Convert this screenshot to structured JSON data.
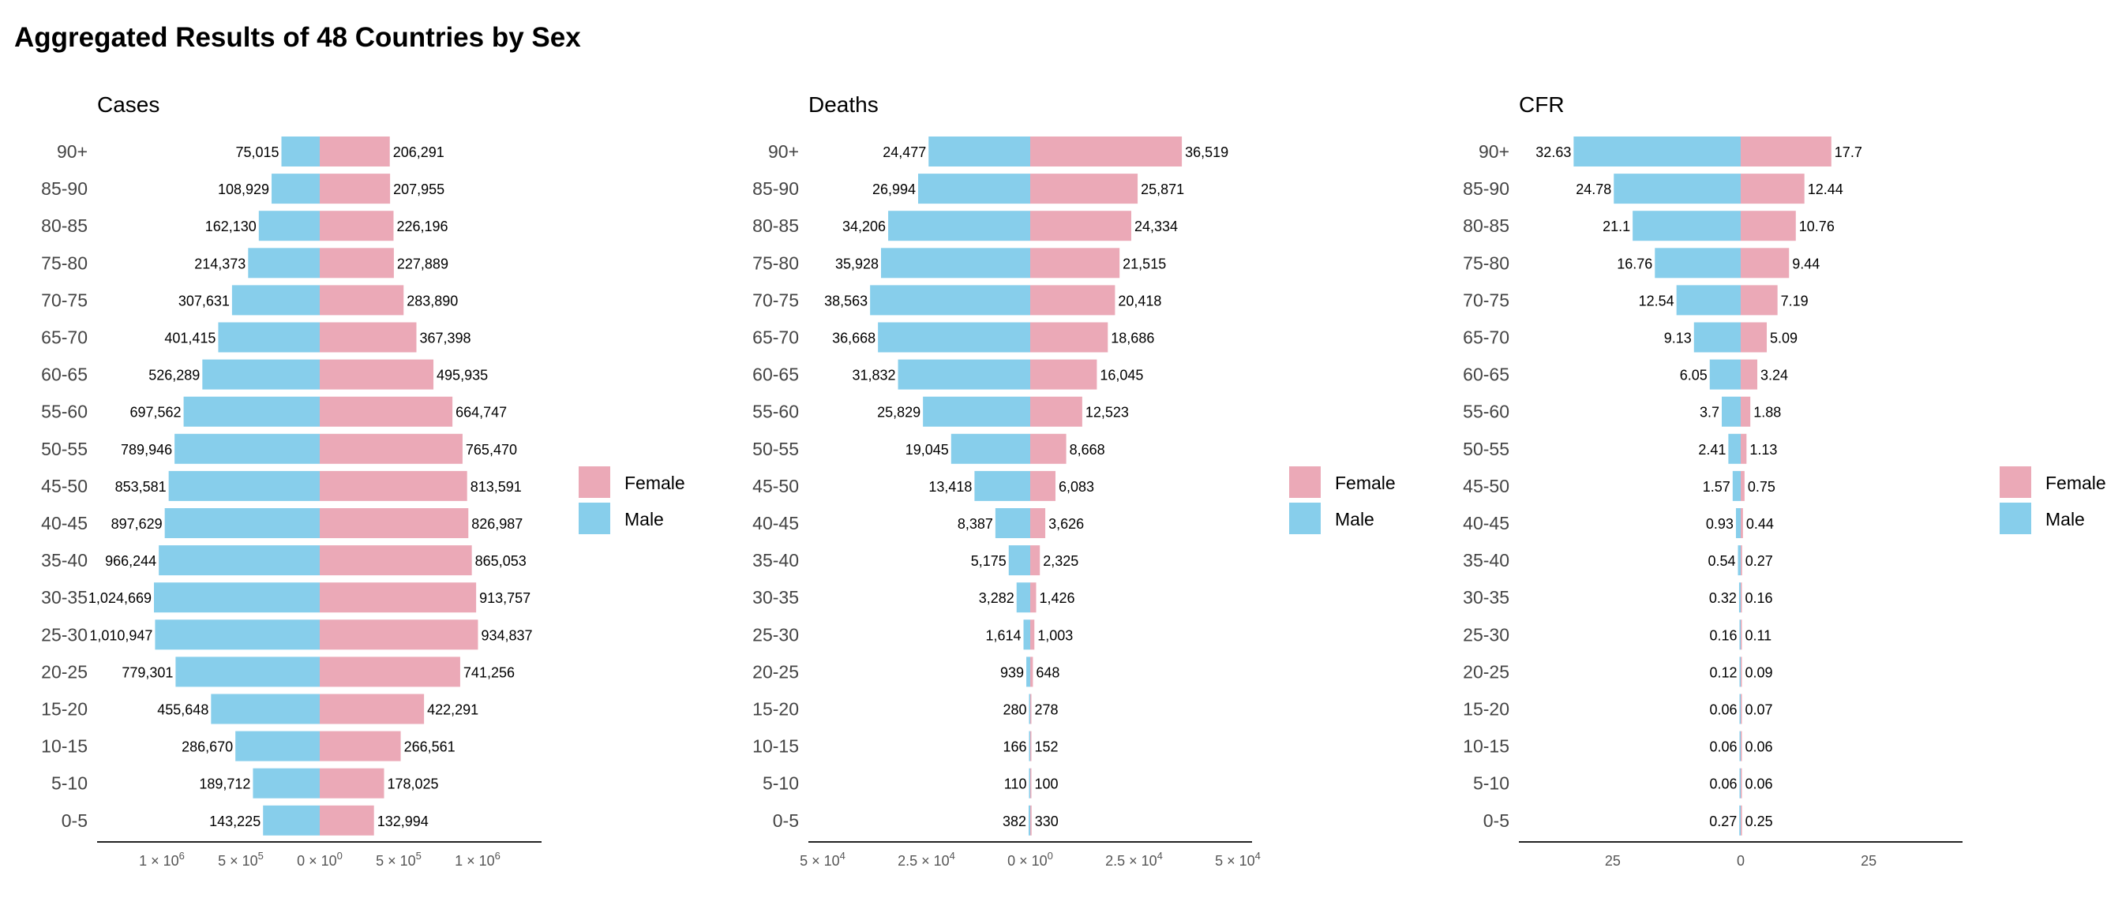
{
  "title": "Aggregated Results of 48 Countries by Sex",
  "colors": {
    "female": "#EBA9B7",
    "male": "#87CEEB"
  },
  "chart_data": [
    {
      "type": "bar",
      "orientation": "horizontal-diverging",
      "title": "Cases",
      "xscale": "pseudo-log (signed)",
      "categories": [
        "90+",
        "85-90",
        "80-85",
        "75-80",
        "70-75",
        "65-70",
        "60-65",
        "55-60",
        "50-55",
        "45-50",
        "40-45",
        "35-40",
        "30-35",
        "25-30",
        "20-25",
        "15-20",
        "10-15",
        "5-10",
        "0-5"
      ],
      "series": [
        {
          "name": "Female",
          "values": [
            206291,
            207955,
            226196,
            227889,
            283890,
            367398,
            495935,
            664747,
            765470,
            813591,
            826987,
            865053,
            913757,
            934837,
            741256,
            422291,
            266561,
            178025,
            132994
          ],
          "labels": [
            "206,291",
            "207,955",
            "226,196",
            "227,889",
            "283,890",
            "367,398",
            "495,935",
            "664,747",
            "765,470",
            "813,591",
            "826,987",
            "865,053",
            "913,757",
            "934,837",
            "741,256",
            "422,291",
            "266,561",
            "178,025",
            "132,994"
          ]
        },
        {
          "name": "Male",
          "values": [
            75015,
            108929,
            162130,
            214373,
            307631,
            401415,
            526289,
            697562,
            789946,
            853581,
            897629,
            966244,
            1024669,
            1010947,
            779301,
            455648,
            286670,
            189712,
            143225
          ],
          "labels": [
            "75,015",
            "108,929",
            "162,130",
            "214,373",
            "307,631",
            "401,415",
            "526,289",
            "697,562",
            "789,946",
            "853,581",
            "897,629",
            "966,244",
            "1,024,669",
            "1,010,947",
            "779,301",
            "455,648",
            "286,670",
            "189,712",
            "143,225"
          ]
        }
      ],
      "ticks": [
        {
          "base": "1 × 10",
          "exp": "6"
        },
        {
          "base": "5 × 10",
          "exp": "5"
        },
        {
          "base": "0 × 10",
          "exp": "0"
        },
        {
          "base": "5 × 10",
          "exp": "5"
        },
        {
          "base": "1 × 10",
          "exp": "6"
        }
      ],
      "legend": "right",
      "grid": false
    },
    {
      "type": "bar",
      "orientation": "horizontal-diverging",
      "title": "Deaths",
      "xlim": [
        -50000,
        50000
      ],
      "categories": [
        "90+",
        "85-90",
        "80-85",
        "75-80",
        "70-75",
        "65-70",
        "60-65",
        "55-60",
        "50-55",
        "45-50",
        "40-45",
        "35-40",
        "30-35",
        "25-30",
        "20-25",
        "15-20",
        "10-15",
        "5-10",
        "0-5"
      ],
      "series": [
        {
          "name": "Female",
          "values": [
            36519,
            25871,
            24334,
            21515,
            20418,
            18686,
            16045,
            12523,
            8668,
            6083,
            3626,
            2325,
            1426,
            1003,
            648,
            278,
            152,
            100,
            330
          ],
          "labels": [
            "36,519",
            "25,871",
            "24,334",
            "21,515",
            "20,418",
            "18,686",
            "16,045",
            "12,523",
            "8,668",
            "6,083",
            "3,626",
            "2,325",
            "1,426",
            "1,003",
            "648",
            "278",
            "152",
            "100",
            "330"
          ]
        },
        {
          "name": "Male",
          "values": [
            24477,
            26994,
            34206,
            35928,
            38563,
            36668,
            31832,
            25829,
            19045,
            13418,
            8387,
            5175,
            3282,
            1614,
            939,
            280,
            166,
            110,
            382
          ],
          "labels": [
            "24,477",
            "26,994",
            "34,206",
            "35,928",
            "38,563",
            "36,668",
            "31,832",
            "25,829",
            "19,045",
            "13,418",
            "8,387",
            "5,175",
            "3,282",
            "1,614",
            "939",
            "280",
            "166",
            "110",
            "382"
          ]
        }
      ],
      "ticks": [
        {
          "base": "5 × 10",
          "exp": "4"
        },
        {
          "base": "2.5 × 10",
          "exp": "4"
        },
        {
          "base": "0 × 10",
          "exp": "0"
        },
        {
          "base": "2.5 × 10",
          "exp": "4"
        },
        {
          "base": "5 × 10",
          "exp": "4"
        }
      ],
      "legend": "right",
      "grid": false
    },
    {
      "type": "bar",
      "orientation": "horizontal-diverging",
      "title": "CFR",
      "xlim": [
        -35,
        35
      ],
      "categories": [
        "90+",
        "85-90",
        "80-85",
        "75-80",
        "70-75",
        "65-70",
        "60-65",
        "55-60",
        "50-55",
        "45-50",
        "40-45",
        "35-40",
        "30-35",
        "25-30",
        "20-25",
        "15-20",
        "10-15",
        "5-10",
        "0-5"
      ],
      "series": [
        {
          "name": "Female",
          "values": [
            17.7,
            12.44,
            10.76,
            9.44,
            7.19,
            5.09,
            3.24,
            1.88,
            1.13,
            0.75,
            0.44,
            0.27,
            0.16,
            0.11,
            0.09,
            0.07,
            0.06,
            0.06,
            0.25
          ],
          "labels": [
            "17.7",
            "12.44",
            "10.76",
            "9.44",
            "7.19",
            "5.09",
            "3.24",
            "1.88",
            "1.13",
            "0.75",
            "0.44",
            "0.27",
            "0.16",
            "0.11",
            "0.09",
            "0.07",
            "0.06",
            "0.06",
            "0.25"
          ]
        },
        {
          "name": "Male",
          "values": [
            32.63,
            24.78,
            21.1,
            16.76,
            12.54,
            9.13,
            6.05,
            3.7,
            2.41,
            1.57,
            0.93,
            0.54,
            0.32,
            0.16,
            0.12,
            0.06,
            0.06,
            0.06,
            0.27
          ],
          "labels": [
            "32.63",
            "24.78",
            "21.1",
            "16.76",
            "12.54",
            "9.13",
            "6.05",
            "3.7",
            "2.41",
            "1.57",
            "0.93",
            "0.54",
            "0.32",
            "0.16",
            "0.12",
            "0.06",
            "0.06",
            "0.06",
            "0.27"
          ]
        }
      ],
      "ticks": [
        {
          "base": "25",
          "value": -25
        },
        {
          "base": "0",
          "value": 0
        },
        {
          "base": "25",
          "value": 25
        }
      ],
      "legend": "right",
      "grid": false
    }
  ]
}
